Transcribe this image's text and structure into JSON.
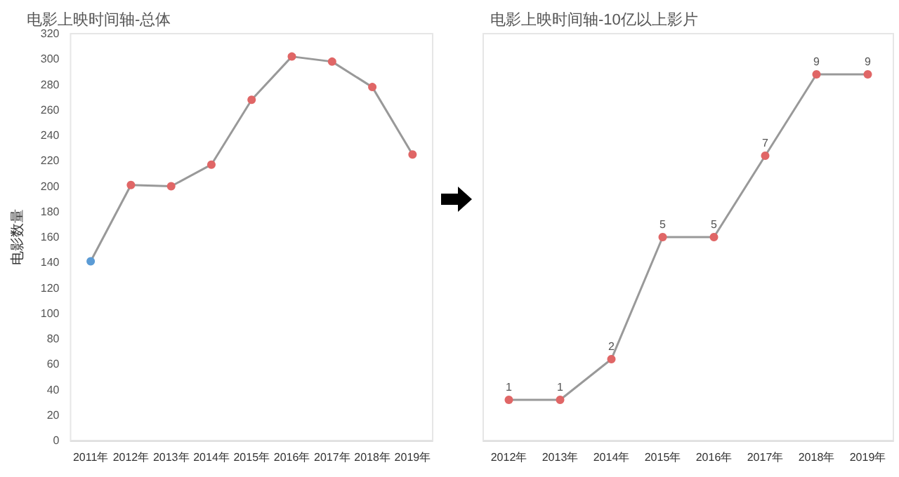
{
  "chart_data": [
    {
      "type": "line",
      "title": "电影上映时间轴-总体",
      "ylabel": "电影数量",
      "categories": [
        "2011年",
        "2012年",
        "2013年",
        "2014年",
        "2015年",
        "2016年",
        "2017年",
        "2018年",
        "2019年"
      ],
      "series": [
        {
          "color": "#999999",
          "colors": [
            "#5b9bd5",
            "#e06666",
            "#e06666",
            "#e06666",
            "#e06666",
            "#e06666",
            "#e06666",
            "#e06666",
            "#e06666"
          ],
          "values": [
            141,
            201,
            200,
            217,
            268,
            302,
            298,
            278,
            225
          ]
        }
      ],
      "ylim": [
        0,
        320
      ],
      "yticks": [
        0,
        20,
        40,
        60,
        80,
        100,
        120,
        140,
        160,
        180,
        200,
        220,
        240,
        260,
        280,
        300,
        320
      ],
      "grid": false,
      "marker": "circle",
      "line_style": "solid"
    },
    {
      "type": "line",
      "title": "电影上映时间轴-10亿以上影片",
      "categories": [
        "2012年",
        "2013年",
        "2014年",
        "2015年",
        "2016年",
        "2017年",
        "2018年",
        "2019年"
      ],
      "series": [
        {
          "color": "#999999",
          "colors": [
            "#e06666",
            "#e06666",
            "#e06666",
            "#e06666",
            "#e06666",
            "#e06666",
            "#e06666",
            "#e06666"
          ],
          "values": [
            1,
            1,
            2,
            5,
            5,
            7,
            9,
            9
          ]
        }
      ],
      "data_labels": true,
      "tick_labels": "x",
      "grid": false,
      "marker": "circle",
      "line_style": "solid"
    }
  ]
}
